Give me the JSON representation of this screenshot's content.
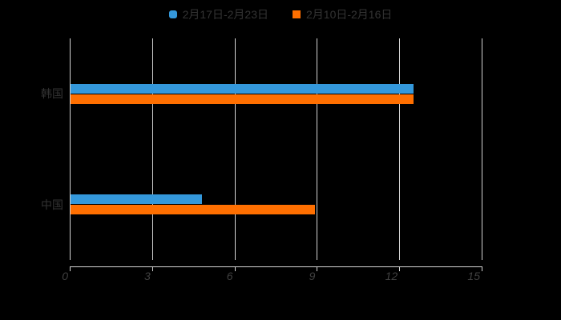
{
  "background": "#000000",
  "legend": {
    "items": [
      {
        "label": "2月17日-2月23日",
        "color": "#3498db",
        "shape": "roundRect"
      },
      {
        "label": "2月10日-2月16日",
        "color": "#ff6f00",
        "shape": "rect"
      }
    ]
  },
  "chart_data": {
    "type": "bar",
    "orientation": "horizontal",
    "title": "",
    "categories": [
      "韩国",
      "中国"
    ],
    "series": [
      {
        "name": "2月17日-2月23日",
        "color": "#3498db",
        "values": [
          12.5,
          4.8
        ]
      },
      {
        "name": "2月10日-2月16日",
        "color": "#ff6f00",
        "values": [
          12.5,
          8.9
        ]
      }
    ],
    "xlabel": "",
    "ylabel": "",
    "xlim": [
      0,
      15
    ],
    "xticks": [
      0,
      3,
      6,
      9,
      12,
      15
    ],
    "grid": true,
    "legend_position": "top-center",
    "grid_color": "#d4d4d4",
    "tick_label_color": "#404040",
    "category_label_color": "#333333"
  }
}
